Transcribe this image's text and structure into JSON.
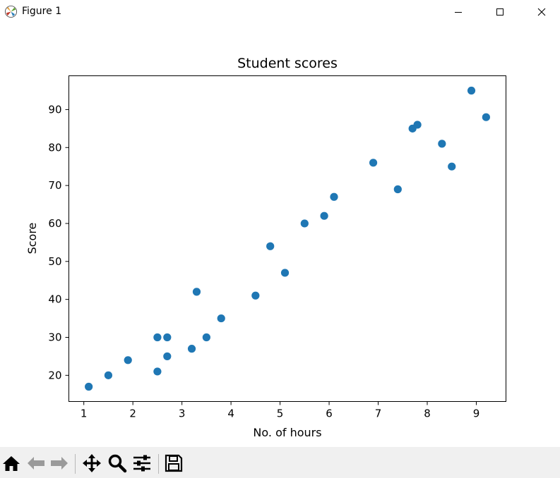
{
  "window": {
    "title": "Figure 1",
    "app_icon": "matplotlib-icon",
    "controls": [
      "minimize-icon",
      "maximize-icon",
      "close-icon"
    ]
  },
  "toolbar": {
    "tools": [
      "home-icon",
      "back-icon",
      "forward-icon",
      "pan-icon",
      "zoom-icon",
      "configure-icon",
      "save-icon"
    ]
  },
  "chart_data": {
    "type": "scatter",
    "title": "Student scores",
    "xlabel": "No. of hours",
    "ylabel": "Score",
    "xlim": [
      0.695,
      9.605
    ],
    "ylim": [
      13.1,
      98.9
    ],
    "xticks": [
      1,
      2,
      3,
      4,
      5,
      6,
      7,
      8,
      9
    ],
    "yticks": [
      20,
      30,
      40,
      50,
      60,
      70,
      80,
      90
    ],
    "grid": false,
    "marker_color": "#1f77b4",
    "x": [
      2.5,
      5.1,
      3.2,
      8.5,
      3.5,
      1.5,
      9.2,
      5.5,
      8.3,
      2.7,
      7.7,
      5.9,
      4.5,
      3.3,
      1.1,
      8.9,
      2.5,
      1.9,
      6.1,
      7.4,
      2.7,
      4.8,
      3.8,
      6.9,
      7.8
    ],
    "y": [
      21,
      47,
      27,
      75,
      30,
      20,
      88,
      60,
      81,
      25,
      85,
      62,
      41,
      42,
      17,
      95,
      30,
      24,
      67,
      69,
      30,
      54,
      35,
      76,
      86
    ]
  }
}
